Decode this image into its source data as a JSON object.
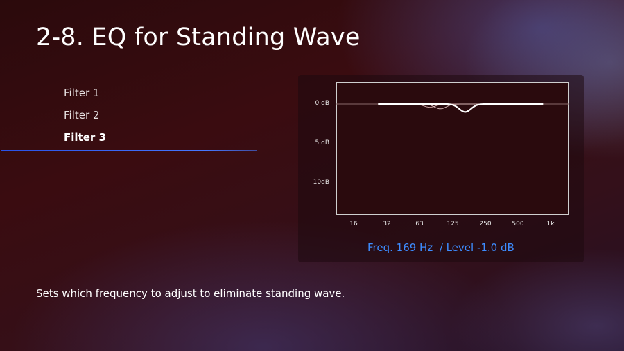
{
  "screen": {
    "title": "2-8. EQ for Standing Wave",
    "description": "Sets which frequency to adjust to eliminate standing wave."
  },
  "menu": {
    "items": [
      {
        "label": "Filter 1",
        "selected": false
      },
      {
        "label": "Filter 2",
        "selected": false
      },
      {
        "label": "Filter 3",
        "selected": true
      }
    ]
  },
  "eq_graph": {
    "y_labels": [
      "0 dB",
      "5 dB",
      "10dB"
    ],
    "x_labels": [
      "16",
      "32",
      "63",
      "125",
      "250",
      "500",
      "1k"
    ],
    "readout": {
      "freq": "Freq. 169 Hz",
      "separator": "  / ",
      "level": "Level -1.0 dB"
    },
    "colors": {
      "accent": "#3d8cff",
      "curve": "#ffffff",
      "inactive_curve": "#b88c8c"
    }
  },
  "chart_data": {
    "type": "line",
    "x_scale": "log",
    "x_ticks": [
      16,
      32,
      63,
      125,
      250,
      500,
      1000
    ],
    "y_ticks_db": [
      0,
      5,
      10
    ],
    "filters": [
      {
        "freq_hz": 80,
        "level_db": -0.4
      },
      {
        "freq_hz": 100,
        "level_db": -0.6
      },
      {
        "freq_hz": 169,
        "level_db": -1.0
      }
    ]
  }
}
